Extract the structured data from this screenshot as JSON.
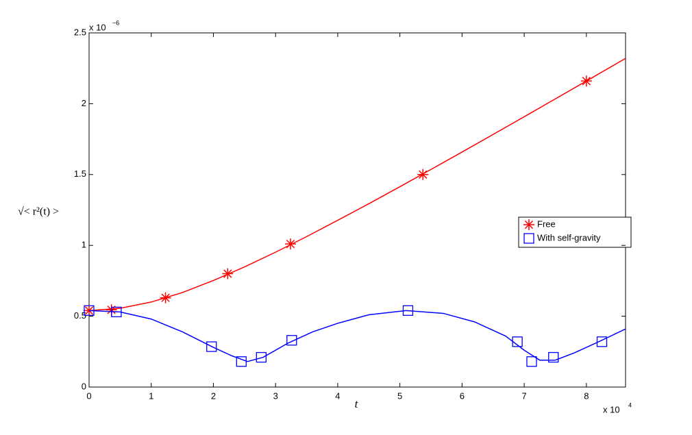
{
  "chart_data": {
    "type": "line",
    "x_label": "t",
    "y_label": "√< r²(t) >",
    "x_multiplier": {
      "base": "x 10",
      "exp": "4"
    },
    "y_multiplier": {
      "base": "x 10",
      "exp": "−6"
    },
    "xlim": [
      0,
      8.63
    ],
    "xticks": [
      0,
      1,
      2,
      3,
      4,
      5,
      6,
      7,
      8
    ],
    "ylim": [
      0,
      2.5
    ],
    "yticks": [
      0,
      0.5,
      1,
      1.5,
      2,
      2.5
    ],
    "legend": "right",
    "series": [
      {
        "name": "Free",
        "color": "#ff0000",
        "marker": "star",
        "x": [
          0,
          0.5,
          1,
          1.5,
          2,
          2.5,
          3,
          3.5,
          4,
          4.5,
          5,
          5.5,
          6,
          6.5,
          7,
          7.5,
          8,
          8.63
        ],
        "values": [
          0.54,
          0.556,
          0.6,
          0.667,
          0.752,
          0.848,
          0.952,
          1.062,
          1.177,
          1.294,
          1.414,
          1.536,
          1.659,
          1.783,
          1.908,
          2.034,
          2.16,
          2.32
        ],
        "marker_x": [
          0,
          0.36,
          1.23,
          2.23,
          3.24,
          5.37,
          8.0
        ],
        "marker_values": [
          0.54,
          0.545,
          0.63,
          0.8,
          1.01,
          1.5,
          2.16
        ]
      },
      {
        "name": "With self-gravity",
        "color": "#0000ff",
        "marker": "square",
        "x": [
          0,
          0.5,
          1,
          1.5,
          2,
          2.3,
          2.55,
          2.8,
          3.2,
          3.6,
          4,
          4.5,
          5.1,
          5.7,
          6.2,
          6.7,
          7,
          7.25,
          7.5,
          7.8,
          8.2,
          8.63
        ],
        "values": [
          0.54,
          0.53,
          0.48,
          0.39,
          0.28,
          0.22,
          0.18,
          0.21,
          0.31,
          0.39,
          0.45,
          0.51,
          0.54,
          0.52,
          0.46,
          0.36,
          0.26,
          0.19,
          0.19,
          0.24,
          0.32,
          0.41
        ],
        "marker_x": [
          0,
          0.44,
          1.97,
          2.45,
          2.77,
          3.26,
          5.13,
          6.89,
          7.12,
          7.47,
          8.25
        ],
        "marker_values": [
          0.54,
          0.53,
          0.285,
          0.18,
          0.21,
          0.33,
          0.54,
          0.32,
          0.18,
          0.21,
          0.32
        ]
      }
    ]
  }
}
